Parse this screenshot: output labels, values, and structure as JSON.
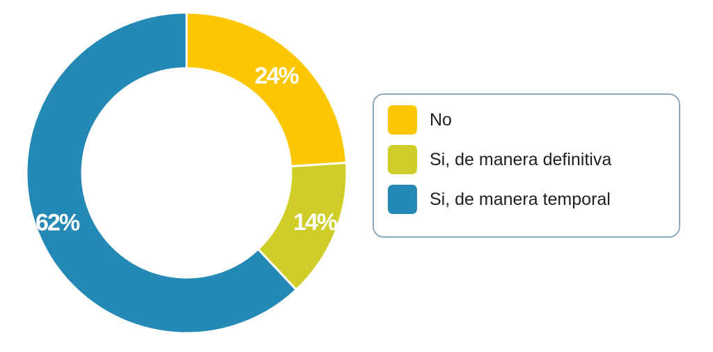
{
  "chart_data": {
    "type": "pie",
    "title": "",
    "legend_position": "right",
    "categories": [
      "No",
      "Si, de manera definitiva",
      "Si, de manera temporal"
    ],
    "values": [
      24,
      14,
      62
    ],
    "labels": [
      "24%",
      "14%",
      "62%"
    ],
    "colors": [
      "#fcc600",
      "#cfcd27",
      "#2489b4"
    ]
  }
}
